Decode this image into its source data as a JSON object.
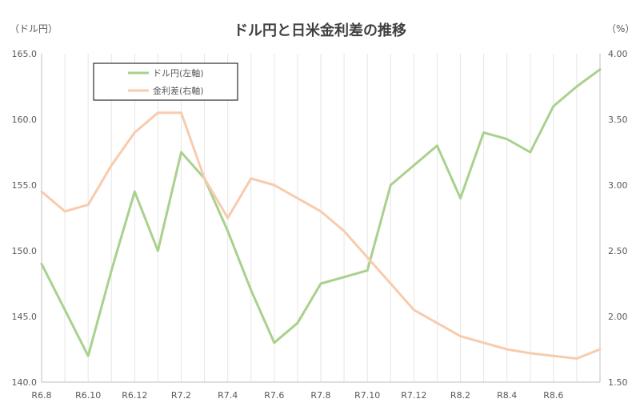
{
  "chart_data": {
    "type": "line",
    "title": "ドル円と日米金利差の推移",
    "left_unit_label": "（ドル円）",
    "right_unit_label": "（%）",
    "x_tick_labels": [
      "R6.8",
      "R6.10",
      "R6.12",
      "R7.2",
      "R7.4",
      "R7.6",
      "R7.8",
      "R7.10",
      "R7.12",
      "R8.2",
      "R8.4",
      "R8.6"
    ],
    "y_left": {
      "ylim": [
        140.0,
        165.0
      ],
      "ticks": [
        "140.0",
        "145.0",
        "150.0",
        "155.0",
        "160.0",
        "165.0"
      ]
    },
    "y_right": {
      "ylim": [
        1.5,
        4.0
      ],
      "ticks": [
        "1.50",
        "2.00",
        "2.50",
        "3.00",
        "3.50",
        "4.00"
      ]
    },
    "grid": "vertical",
    "legend_placement": "top-left",
    "series": [
      {
        "name": "ドル円(左軸)",
        "axis": "left",
        "color": "#a9d18e",
        "x": [
          "R6.8",
          "R6.9",
          "R6.10",
          "R6.11",
          "R6.12",
          "R7.1",
          "R7.2",
          "R7.3",
          "R7.4",
          "R7.5",
          "R7.6",
          "R7.7",
          "R7.8",
          "R7.9",
          "R7.10",
          "R7.11",
          "R7.12",
          "R8.1",
          "R8.2",
          "R8.3",
          "R8.4",
          "R8.5",
          "R8.6",
          "R8.7",
          "R8.8"
        ],
        "values": [
          149.0,
          145.5,
          142.0,
          148.5,
          154.5,
          150.0,
          157.5,
          155.5,
          151.5,
          147.0,
          143.0,
          144.5,
          147.5,
          148.0,
          148.5,
          155.0,
          156.5,
          158.0,
          154.0,
          159.0,
          158.5,
          157.5,
          161.0,
          162.5,
          163.8
        ]
      },
      {
        "name": "金利差(右軸)",
        "axis": "right",
        "color": "#f8cbad",
        "x": [
          "R6.8",
          "R6.9",
          "R6.10",
          "R6.11",
          "R6.12",
          "R7.1",
          "R7.2",
          "R7.3",
          "R7.4",
          "R7.5",
          "R7.6",
          "R7.7",
          "R7.8",
          "R7.9",
          "R7.10",
          "R7.11",
          "R7.12",
          "R8.1",
          "R8.2",
          "R8.3",
          "R8.4",
          "R8.5",
          "R8.6",
          "R8.7",
          "R8.8"
        ],
        "values": [
          2.95,
          2.8,
          2.85,
          3.15,
          3.4,
          3.55,
          3.55,
          3.05,
          2.75,
          3.05,
          3.0,
          2.9,
          2.8,
          2.65,
          2.45,
          2.25,
          2.05,
          1.95,
          1.85,
          1.8,
          1.75,
          1.72,
          1.7,
          1.68,
          1.75
        ]
      }
    ]
  }
}
